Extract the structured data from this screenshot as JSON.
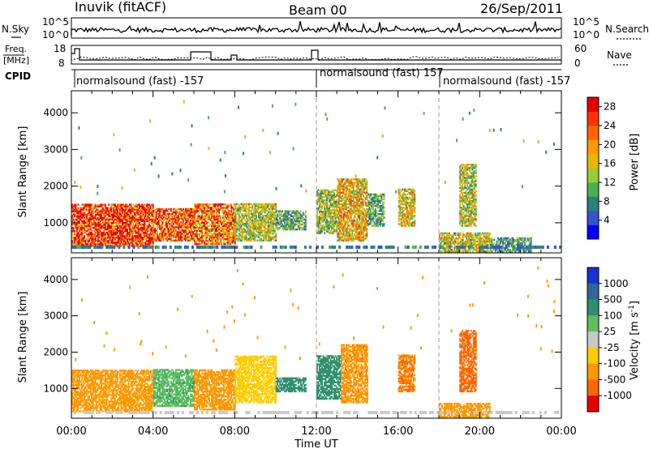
{
  "header": {
    "station": "Inuvik (fitACF)",
    "beam": "Beam 00",
    "date": "26/Sep/2011"
  },
  "strips": {
    "nsky_label": "N.Sky",
    "nsky_ticks": [
      "10^5",
      "10^0"
    ],
    "nsearch_label": "N.Search",
    "nsearch_ticks": [
      "10^5",
      "10^0"
    ],
    "freq_label": "Freq.",
    "freq_unit": "[MHz]",
    "freq_ticks": [
      "18",
      "8"
    ],
    "nave_label": "Nave",
    "nave_ticks": [
      "60",
      "0"
    ],
    "cpid_label": "CPID",
    "cpid_segments": [
      "normalsound (fast) -157",
      "normalsound (fast) 157",
      "normalsound (fast) -157"
    ]
  },
  "chart_data": [
    {
      "type": "heatmap",
      "name": "power-panel",
      "ylabel": "Slant Range [km]",
      "xlabel": "Time UT",
      "x_ticks": [
        "00:00",
        "04:00",
        "08:00",
        "12:00",
        "16:00",
        "20:00",
        "00:00"
      ],
      "x_range_hours": [
        0,
        24
      ],
      "y_ticks": [
        1000,
        2000,
        3000,
        4000
      ],
      "ylim": [
        180,
        4600
      ],
      "dashed_markers_hours": [
        12,
        18
      ],
      "colorbar": {
        "label": "Power [dB]",
        "ticks": [
          "4",
          "8",
          "12",
          "16",
          "20",
          "24",
          "28"
        ],
        "range": [
          0,
          30
        ],
        "colors": [
          "#0000ff",
          "#3355cc",
          "#2f7f7f",
          "#4caf50",
          "#99cc33",
          "#e6b800",
          "#ff9900",
          "#ff6600",
          "#ff3300",
          "#e60000"
        ]
      },
      "regions": [
        {
          "t0": 0.0,
          "t1": 4.0,
          "r0": 350,
          "r1": 1500,
          "level": 27
        },
        {
          "t0": 4.0,
          "t1": 6.0,
          "r0": 500,
          "r1": 1400,
          "level": 24
        },
        {
          "t0": 6.0,
          "t1": 8.0,
          "r0": 400,
          "r1": 1500,
          "level": 22
        },
        {
          "t0": 8.0,
          "t1": 10.0,
          "r0": 500,
          "r1": 1500,
          "level": 14
        },
        {
          "t0": 10.0,
          "t1": 11.5,
          "r0": 800,
          "r1": 1300,
          "level": 10
        },
        {
          "t0": 12.0,
          "t1": 13.0,
          "r0": 700,
          "r1": 1900,
          "level": 13
        },
        {
          "t0": 13.0,
          "t1": 14.5,
          "r0": 500,
          "r1": 2200,
          "level": 18
        },
        {
          "t0": 14.5,
          "t1": 15.3,
          "r0": 900,
          "r1": 1800,
          "level": 10
        },
        {
          "t0": 16.0,
          "t1": 16.8,
          "r0": 900,
          "r1": 1900,
          "level": 16
        },
        {
          "t0": 18.0,
          "t1": 20.5,
          "r0": 200,
          "r1": 700,
          "level": 15
        },
        {
          "t0": 19.0,
          "t1": 19.8,
          "r0": 900,
          "r1": 2600,
          "level": 14
        },
        {
          "t0": 20.5,
          "t1": 22.5,
          "r0": 200,
          "r1": 600,
          "level": 9
        }
      ]
    },
    {
      "type": "heatmap",
      "name": "velocity-panel",
      "ylabel": "Slant Range [km]",
      "xlabel": "Time UT",
      "x_ticks": [
        "00:00",
        "04:00",
        "08:00",
        "12:00",
        "16:00",
        "20:00",
        "00:00"
      ],
      "x_range_hours": [
        0,
        24
      ],
      "y_ticks": [
        1000,
        2000,
        3000,
        4000
      ],
      "ylim": [
        180,
        4600
      ],
      "dashed_markers_hours": [
        12,
        18
      ],
      "colorbar": {
        "label": "Velocity [m s^-1]",
        "ticks": [
          "1000",
          "500",
          "100",
          "25",
          "-25",
          "-100",
          "-500",
          "-1000"
        ],
        "colors": [
          "#1a33cc",
          "#336699",
          "#2f8f6f",
          "#5fbf5f",
          "#c8c8c8",
          "#ffcc00",
          "#ff9900",
          "#ff6600",
          "#e60000"
        ]
      },
      "regions": [
        {
          "t0": 0.0,
          "t1": 4.0,
          "r0": 350,
          "r1": 1500,
          "level": -300
        },
        {
          "t0": 4.0,
          "t1": 6.0,
          "r0": 500,
          "r1": 1500,
          "level": 80
        },
        {
          "t0": 6.0,
          "t1": 8.0,
          "r0": 400,
          "r1": 1500,
          "level": -200
        },
        {
          "t0": 8.0,
          "t1": 10.0,
          "r0": 600,
          "r1": 1900,
          "level": -60
        },
        {
          "t0": 10.0,
          "t1": 11.5,
          "r0": 900,
          "r1": 1300,
          "level": 200
        },
        {
          "t0": 12.0,
          "t1": 13.2,
          "r0": 700,
          "r1": 1900,
          "level": 150
        },
        {
          "t0": 13.2,
          "t1": 14.5,
          "r0": 600,
          "r1": 2200,
          "level": -400
        },
        {
          "t0": 16.0,
          "t1": 16.8,
          "r0": 900,
          "r1": 1900,
          "level": -500
        },
        {
          "t0": 18.0,
          "t1": 20.5,
          "r0": 200,
          "r1": 600,
          "level": -200
        },
        {
          "t0": 19.0,
          "t1": 19.8,
          "r0": 900,
          "r1": 2600,
          "level": -700
        }
      ]
    }
  ]
}
